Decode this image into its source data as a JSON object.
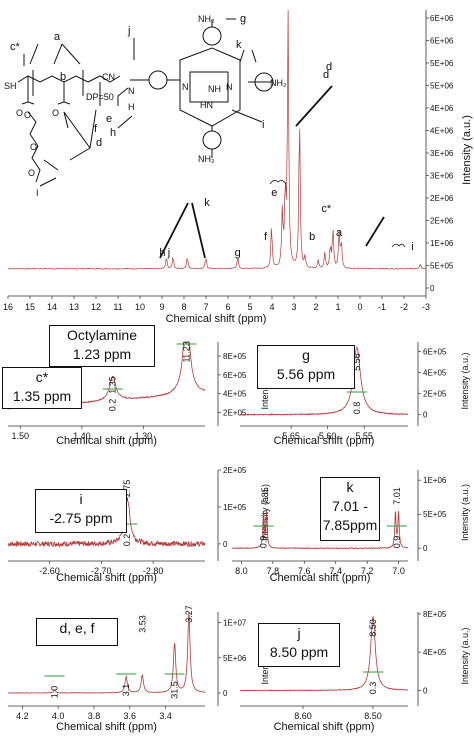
{
  "chart_data": [
    {
      "type": "line",
      "xlabel": "Chemical shift (ppm)",
      "ylabel": "Intensity (a.u.)",
      "xlim": [
        16,
        -3
      ],
      "ylim": [
        -500000.0,
        6700000.0
      ],
      "x_ticks": [
        "16",
        "15",
        "14",
        "13",
        "12",
        "11",
        "10",
        "9",
        "8",
        "7",
        "6",
        "5",
        "4",
        "3",
        "2",
        "1",
        "0",
        "-1",
        "-2",
        "-3"
      ],
      "y_ticks": [
        "0",
        "5E+05",
        "1E+06",
        "2E+06",
        "2E+06",
        "3E+06",
        "3E+06",
        "4E+06",
        "4E+06",
        "5E+06",
        "5E+06",
        "6E+06",
        "6E+06"
      ],
      "structure_labels": [
        "SH",
        "DP=50",
        "CN",
        "N",
        "H",
        "O",
        "O",
        "O",
        "O",
        "O",
        "I",
        "NH",
        "N",
        "N",
        "HN",
        "NH₂",
        "NH₂",
        "NH₂"
      ],
      "peak_labels": [
        {
          "text": "h",
          "x": 8.8
        },
        {
          "text": "j",
          "x": 8.5
        },
        {
          "text": "k",
          "x": 7.5
        },
        {
          "text": "g",
          "x": 5.56
        },
        {
          "text": "f",
          "x": 4.02
        },
        {
          "text": "e",
          "x": 3.53
        },
        {
          "text": "d",
          "x": 3.27
        },
        {
          "text": "b",
          "x": 1.9
        },
        {
          "text": "c*",
          "x": 1.35
        },
        {
          "text": "a",
          "x": 0.95
        },
        {
          "text": "i",
          "x": -2.75
        }
      ],
      "structure_annotations": [
        "c*",
        "a",
        "b",
        "j",
        "g",
        "k",
        "h",
        "i",
        "d",
        "f",
        "e",
        "d"
      ],
      "series": [
        {
          "peaks": [
            {
              "x": 8.8,
              "y": 300000.0
            },
            {
              "x": 8.5,
              "y": 320000.0
            },
            {
              "x": 7.85,
              "y": 310000.0
            },
            {
              "x": 7.01,
              "y": 310000.0
            },
            {
              "x": 5.56,
              "y": 300000.0
            },
            {
              "x": 4.02,
              "y": 1100000.0
            },
            {
              "x": 3.53,
              "y": 1450000.0
            },
            {
              "x": 3.4,
              "y": 1900000.0
            },
            {
              "x": 3.27,
              "y": 6600000.0
            },
            {
              "x": 2.75,
              "y": 4000000.0
            },
            {
              "x": 2.5,
              "y": 280000.0
            },
            {
              "x": 1.9,
              "y": 220000.0
            },
            {
              "x": 1.6,
              "y": 400000.0
            },
            {
              "x": 1.35,
              "y": 550000.0
            },
            {
              "x": 1.23,
              "y": 1050000.0
            },
            {
              "x": 0.95,
              "y": 900000.0
            },
            {
              "x": 0.85,
              "y": 650000.0
            },
            {
              "x": -2.75,
              "y": 120000.0
            }
          ]
        }
      ]
    },
    {
      "type": "line",
      "label": "c* / Octylamine",
      "xlabel": "Chemical shift (ppm)",
      "ylabel": "Intensity (a.u.)",
      "xlim": [
        1.52,
        1.2
      ],
      "ylim": [
        120000.0,
        950000.0
      ],
      "x_ticks": [
        "1.50",
        "1.40",
        "1.30"
      ],
      "y_ticks": [
        "2E+05",
        "4E+05",
        "6E+05",
        "8E+05"
      ],
      "boxes": [
        {
          "lines": [
            "Octylamine",
            "1.23 ppm"
          ]
        },
        {
          "lines": [
            "c*",
            "1.35 ppm"
          ]
        }
      ],
      "peak_values": [
        "1.35",
        "1.23"
      ],
      "integrals": [
        "0.2",
        "1"
      ],
      "series": [
        {
          "peaks": [
            {
              "x": 1.35,
              "y": 260000.0
            },
            {
              "x": 1.23,
              "y": 920000.0
            }
          ]
        }
      ]
    },
    {
      "type": "line",
      "label": "g",
      "xlabel": "Chemical shift (ppm)",
      "ylabel": "Intensity (a.u.)",
      "xlim": [
        5.72,
        5.49
      ],
      "ylim": [
        -50000.0,
        690000.0
      ],
      "x_ticks": [
        "5.65",
        "5.60",
        "5.55"
      ],
      "y_ticks": [
        "0",
        "2E+05",
        "4E+05",
        "6E+05"
      ],
      "boxes": [
        {
          "lines": [
            "g",
            "5.56 ppm"
          ]
        }
      ],
      "peak_values": [
        "5.56"
      ],
      "integrals": [
        "0.8"
      ],
      "series": [
        {
          "peaks": [
            {
              "x": 5.56,
              "y": 640000.0
            }
          ]
        }
      ]
    },
    {
      "type": "line",
      "label": "i",
      "xlabel": "Chemical shift (ppm)",
      "ylabel": "Intensity (a.u.)",
      "xlim": [
        -2.52,
        -2.9
      ],
      "ylim": [
        -30000.0,
        200000.0
      ],
      "x_ticks": [
        "-2.60",
        "-2.70",
        "-2.80"
      ],
      "y_ticks": [
        "0",
        "1E+05",
        "2E+05"
      ],
      "boxes": [
        {
          "lines": [
            "i",
            "-2.75 ppm"
          ]
        }
      ],
      "peak_values": [
        "-2.75"
      ],
      "integrals": [
        "0.2"
      ],
      "series": [
        {
          "peaks": [
            {
              "x": -2.75,
              "y": 125000.0
            }
          ]
        }
      ]
    },
    {
      "type": "line",
      "label": "k",
      "xlabel": "Chemical shift (ppm)",
      "ylabel": "Intensity (a.u.)",
      "xlim": [
        8.06,
        6.94
      ],
      "ylim": [
        -100000.0,
        1150000.0
      ],
      "x_ticks": [
        "8.0",
        "7.8",
        "7.6",
        "7.4",
        "7.2",
        "7.0"
      ],
      "y_ticks": [
        "0",
        "5E+05",
        "1E+06"
      ],
      "boxes": [
        {
          "lines": [
            "k",
            "7.01 -",
            "7.85ppm"
          ]
        }
      ],
      "peak_values": [
        "7.85",
        "7.01"
      ],
      "integrals": [
        "0.9",
        "0.9"
      ],
      "series": [
        {
          "peaks": [
            {
              "x": 7.86,
              "y": 520000.0
            },
            {
              "x": 7.84,
              "y": 520000.0
            },
            {
              "x": 7.02,
              "y": 520000.0
            },
            {
              "x": 7.0,
              "y": 520000.0
            }
          ]
        }
      ]
    },
    {
      "type": "line",
      "label": "d, e, f",
      "xlabel": "Chemical shift (ppm)",
      "ylabel": "Intensity (a.u.)",
      "xlim": [
        4.28,
        3.18
      ],
      "ylim": [
        -1000000.0,
        11500000.0
      ],
      "x_ticks": [
        "4.2",
        "4.0",
        "3.8",
        "3.6",
        "3.4"
      ],
      "y_ticks": [
        "0",
        "5E+06",
        "1E+07"
      ],
      "boxes": [
        {
          "lines": [
            "d, e, f"
          ]
        }
      ],
      "peak_values": [
        "4.02",
        "3.53",
        "3.27"
      ],
      "integrals": [
        "1.0",
        "3.1",
        "31.5"
      ],
      "series": [
        {
          "peaks": [
            {
              "x": 4.02,
              "y": 400000.0
            },
            {
              "x": 3.62,
              "y": 2300000.0
            },
            {
              "x": 3.53,
              "y": 2500000.0
            },
            {
              "x": 3.35,
              "y": 7000000.0
            },
            {
              "x": 3.27,
              "y": 11500000.0
            }
          ]
        }
      ]
    },
    {
      "type": "line",
      "label": "j",
      "xlabel": "Chemical shift (ppm)",
      "ylabel": "Intensity (a.u.)",
      "xlim": [
        8.69,
        8.45
      ],
      "ylim": [
        -100000.0,
        820000.0
      ],
      "x_ticks": [
        "8.60",
        "8.50"
      ],
      "y_ticks": [
        "0",
        "4E+05",
        "8E+05"
      ],
      "boxes": [
        {
          "lines": [
            "j",
            "8.50 ppm"
          ]
        }
      ],
      "peak_values": [
        "8.50"
      ],
      "integrals": [
        "0.3"
      ],
      "series": [
        {
          "peaks": [
            {
              "x": 8.5,
              "y": 770000.0
            }
          ]
        }
      ]
    }
  ]
}
